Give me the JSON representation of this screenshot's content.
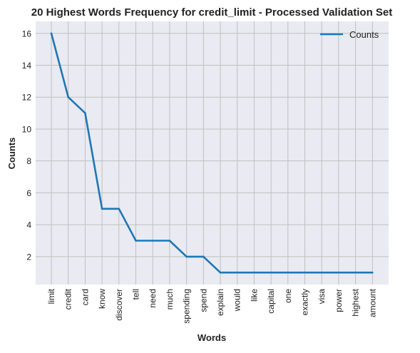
{
  "chart_data": {
    "type": "line",
    "title": "20 Highest Words Frequency for credit_limit - Processed Validation Set",
    "xlabel": "Words",
    "ylabel": "Counts",
    "categories": [
      "limit",
      "credit",
      "card",
      "know",
      "discover",
      "tell",
      "need",
      "much",
      "spending",
      "spend",
      "explain",
      "would",
      "like",
      "capital",
      "one",
      "exactly",
      "visa",
      "power",
      "highest",
      "amount"
    ],
    "series": [
      {
        "name": "Counts",
        "values": [
          16,
          12,
          11,
          5,
          5,
          3,
          3,
          3,
          2,
          2,
          1,
          1,
          1,
          1,
          1,
          1,
          1,
          1,
          1,
          1
        ]
      }
    ],
    "yticks": [
      "2",
      "4",
      "6",
      "8",
      "10",
      "12",
      "14",
      "16"
    ],
    "ylim": [
      0.25,
      16.75
    ],
    "grid": true,
    "legend_position": "top-right",
    "colors": {
      "line": "#1f77b4",
      "plot_bg": "#eaeaf2",
      "grid": "#c0c0c0",
      "text": "#222222"
    }
  }
}
